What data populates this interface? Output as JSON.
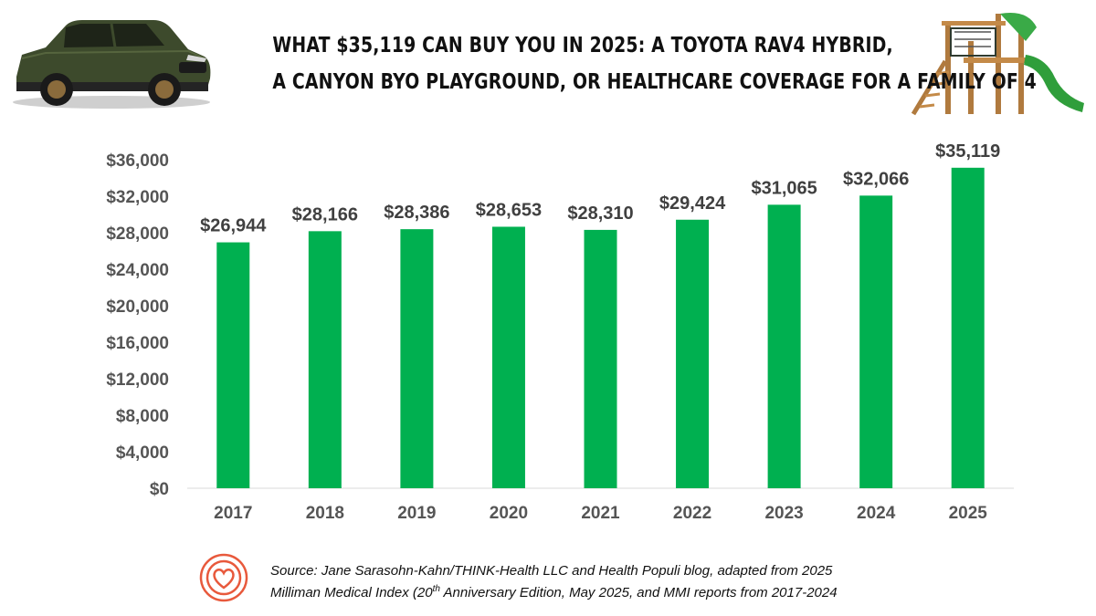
{
  "header": {
    "title_line1": "WHAT $35,119 CAN BUY YOU IN 2025: A TOYOTA RAV4 HYBRID,",
    "title_line2": "A CANYON BYO PLAYGROUND, OR HEALTHCARE COVERAGE FOR A FAMILY OF 4"
  },
  "images": {
    "left": "toyota-rav4-hybrid-image",
    "right": "canyon-byo-playground-image",
    "logo": "heart-rings-logo"
  },
  "colors": {
    "bar": "#00B050",
    "text": "#404040",
    "axis": "#555555",
    "logo": "#E8593C"
  },
  "chart_data": {
    "type": "bar",
    "categories": [
      "2017",
      "2018",
      "2019",
      "2020",
      "2021",
      "2022",
      "2023",
      "2024",
      "2025"
    ],
    "values": [
      26944,
      28166,
      28386,
      28653,
      28310,
      29424,
      31065,
      32066,
      35119
    ],
    "data_labels": [
      "$26,944",
      "$28,166",
      "$28,386",
      "$28,653",
      "$28,310",
      "$29,424",
      "$31,065",
      "$32,066",
      "$35,119"
    ],
    "yticks": [
      0,
      4000,
      8000,
      12000,
      16000,
      20000,
      24000,
      28000,
      32000,
      36000
    ],
    "ytick_labels": [
      "$0",
      "$4,000",
      "$8,000",
      "$12,000",
      "$16,000",
      "$20,000",
      "$24,000",
      "$28,000",
      "$32,000",
      "$36,000"
    ],
    "ylim": [
      0,
      36000
    ],
    "grid": false,
    "legend": "none"
  },
  "source": {
    "line1": "Source: Jane Sarasohn-Kahn/THINK-Health LLC and Health Populi blog, adapted from 2025",
    "line2_prefix": "Milliman Medical Index (20",
    "line2_sup": "th",
    "line2_suffix": " Anniversary Edition, May 2025, and MMI reports from 2017-2024"
  }
}
